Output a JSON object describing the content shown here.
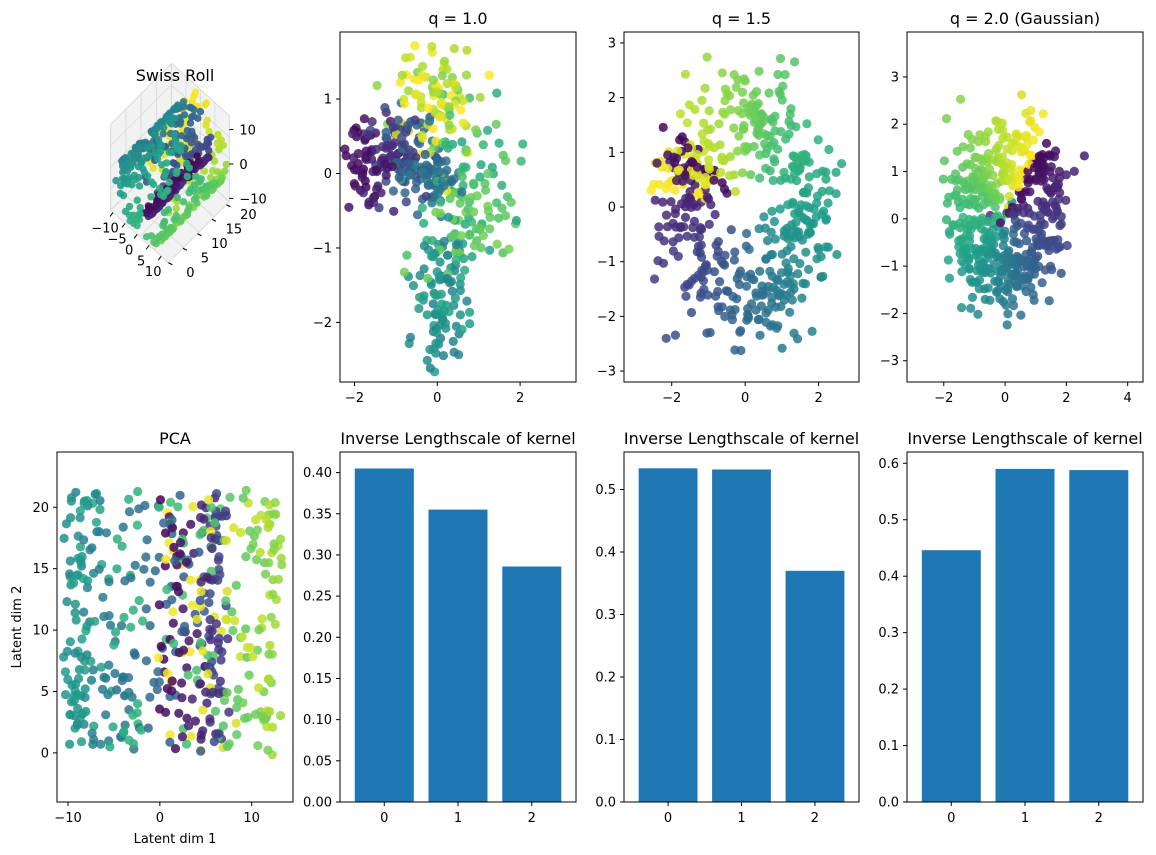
{
  "chart_data": [
    {
      "id": "swiss",
      "type": "scatter",
      "title": "Swiss Roll",
      "projection": "3d",
      "xticks": [
        "−10",
        "−5",
        "0",
        "5",
        "10"
      ],
      "yticks": [
        "0",
        "5",
        "10",
        "15",
        "20"
      ],
      "zticks": [
        "−10",
        "0",
        "10"
      ],
      "xlim": [
        -11,
        13
      ],
      "ylim": [
        0,
        21
      ],
      "zlim": [
        -11,
        14
      ],
      "colormap": "viridis",
      "n_points": 500
    },
    {
      "id": "q1",
      "type": "scatter",
      "title": "q = 1.0",
      "xlim": [
        -2.35,
        3.35
      ],
      "ylim": [
        -2.8,
        1.9
      ],
      "xticks": [
        -2,
        0,
        2
      ],
      "yticks": [
        -2,
        -1,
        0,
        1
      ],
      "colormap": "viridis",
      "n_points": 500
    },
    {
      "id": "q15",
      "type": "scatter",
      "title": "q = 1.5",
      "xlim": [
        -3.3,
        3.1
      ],
      "ylim": [
        -3.2,
        3.2
      ],
      "xticks": [
        -2,
        0,
        2
      ],
      "yticks": [
        -3,
        -2,
        -1,
        0,
        1,
        2,
        3
      ],
      "colormap": "viridis",
      "n_points": 500
    },
    {
      "id": "q2",
      "type": "scatter",
      "title": "q = 2.0 (Gaussian)",
      "xlim": [
        -3.2,
        4.5
      ],
      "ylim": [
        -3.45,
        3.95
      ],
      "xticks": [
        -2,
        0,
        2,
        4
      ],
      "yticks": [
        -3,
        -2,
        -1,
        0,
        1,
        2,
        3
      ],
      "colormap": "viridis",
      "n_points": 500
    },
    {
      "id": "pca",
      "type": "scatter",
      "title": "PCA",
      "xlabel": "Latent dim 1",
      "ylabel": "Latent dim 2",
      "xlim": [
        -11.2,
        14.5
      ],
      "ylim": [
        -4,
        24.5
      ],
      "xticks": [
        -10,
        0,
        10
      ],
      "yticks": [
        0,
        5,
        10,
        15,
        20
      ],
      "colormap": "viridis",
      "n_points": 500
    },
    {
      "id": "bar1",
      "type": "bar",
      "title": "Inverse Lengthscale of kernel",
      "categories": [
        "0",
        "1",
        "2"
      ],
      "values": [
        0.405,
        0.355,
        0.286
      ],
      "ylim": [
        0,
        0.425
      ],
      "yticks": [
        0.0,
        0.05,
        0.1,
        0.15,
        0.2,
        0.25,
        0.3,
        0.35,
        0.4
      ],
      "ytick_labels": [
        "0.00",
        "0.05",
        "0.10",
        "0.15",
        "0.20",
        "0.25",
        "0.30",
        "0.35",
        "0.40"
      ],
      "color": "#1f77b4"
    },
    {
      "id": "bar2",
      "type": "bar",
      "title": "Inverse Lengthscale of kernel",
      "categories": [
        "0",
        "1",
        "2"
      ],
      "values": [
        0.534,
        0.532,
        0.37
      ],
      "ylim": [
        0,
        0.56
      ],
      "yticks": [
        0.0,
        0.1,
        0.2,
        0.3,
        0.4,
        0.5
      ],
      "ytick_labels": [
        "0.0",
        "0.1",
        "0.2",
        "0.3",
        "0.4",
        "0.5"
      ],
      "color": "#1f77b4"
    },
    {
      "id": "bar3",
      "type": "bar",
      "title": "Inverse Lengthscale of kernel",
      "categories": [
        "0",
        "1",
        "2"
      ],
      "values": [
        0.446,
        0.59,
        0.588
      ],
      "ylim": [
        0,
        0.62
      ],
      "yticks": [
        0.0,
        0.1,
        0.2,
        0.3,
        0.4,
        0.5,
        0.6
      ],
      "ytick_labels": [
        "0.0",
        "0.1",
        "0.2",
        "0.3",
        "0.4",
        "0.5",
        "0.6"
      ],
      "color": "#1f77b4"
    }
  ]
}
